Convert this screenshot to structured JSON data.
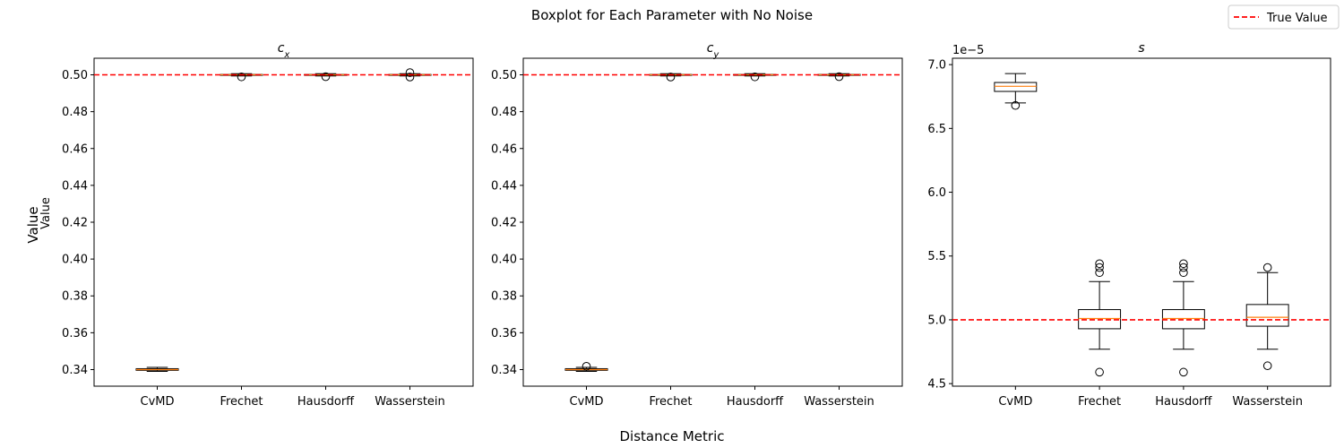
{
  "suptitle": "Boxplot for Each Parameter with No Noise",
  "supxlabel": "Distance Metric",
  "supylabel": "Value",
  "legend": {
    "label": "True Value",
    "placement": "top-right",
    "color": "#ff0000",
    "linestyle": "dashed"
  },
  "colors": {
    "median": "#ff7f0e",
    "box": "#000000",
    "true_line": "#ff0000"
  },
  "chart_data": [
    {
      "type": "box",
      "title": "c_x",
      "ylabel": "Value",
      "categories": [
        "CvMD",
        "Frechet",
        "Hausdorff",
        "Wasserstein"
      ],
      "ylim": [
        0.331,
        0.509
      ],
      "yticks": [
        0.34,
        0.36,
        0.38,
        0.4,
        0.42,
        0.44,
        0.46,
        0.48,
        0.5
      ],
      "ytick_labels": [
        "0.34",
        "0.36",
        "0.38",
        "0.40",
        "0.42",
        "0.44",
        "0.46",
        "0.48",
        "0.50"
      ],
      "true_value": 0.5,
      "boxes": [
        {
          "whislo": 0.339,
          "q1": 0.3396,
          "med": 0.34,
          "q3": 0.3405,
          "whishi": 0.3412,
          "fliers": []
        },
        {
          "whislo": 0.4994,
          "q1": 0.4998,
          "med": 0.5,
          "q3": 0.5002,
          "whishi": 0.5006,
          "fliers": [
            0.4989
          ]
        },
        {
          "whislo": 0.4994,
          "q1": 0.4998,
          "med": 0.5,
          "q3": 0.5002,
          "whishi": 0.5006,
          "fliers": [
            0.499
          ]
        },
        {
          "whislo": 0.4994,
          "q1": 0.4998,
          "med": 0.5,
          "q3": 0.5002,
          "whishi": 0.5006,
          "fliers": [
            0.5012,
            0.4988
          ]
        }
      ]
    },
    {
      "type": "box",
      "title": "c_y",
      "categories": [
        "CvMD",
        "Frechet",
        "Hausdorff",
        "Wasserstein"
      ],
      "ylim": [
        0.331,
        0.509
      ],
      "yticks": [
        0.34,
        0.36,
        0.38,
        0.4,
        0.42,
        0.44,
        0.46,
        0.48,
        0.5
      ],
      "ytick_labels": [
        "0.34",
        "0.36",
        "0.38",
        "0.40",
        "0.42",
        "0.44",
        "0.46",
        "0.48",
        "0.50"
      ],
      "true_value": 0.5,
      "boxes": [
        {
          "whislo": 0.339,
          "q1": 0.3396,
          "med": 0.34,
          "q3": 0.3405,
          "whishi": 0.3412,
          "fliers": [
            0.3418
          ]
        },
        {
          "whislo": 0.4994,
          "q1": 0.4998,
          "med": 0.5,
          "q3": 0.5002,
          "whishi": 0.5006,
          "fliers": [
            0.4988
          ]
        },
        {
          "whislo": 0.4994,
          "q1": 0.4998,
          "med": 0.5,
          "q3": 0.5002,
          "whishi": 0.5006,
          "fliers": [
            0.4989
          ]
        },
        {
          "whislo": 0.4994,
          "q1": 0.4998,
          "med": 0.5,
          "q3": 0.5002,
          "whishi": 0.5006,
          "fliers": [
            0.499
          ]
        }
      ]
    },
    {
      "type": "box",
      "title": "s",
      "categories": [
        "CvMD",
        "Frechet",
        "Hausdorff",
        "Wasserstein"
      ],
      "ylim": [
        4.48,
        7.05
      ],
      "yticks": [
        4.5,
        5.0,
        5.5,
        6.0,
        6.5,
        7.0
      ],
      "ytick_labels": [
        "4.5",
        "5.0",
        "5.5",
        "6.0",
        "6.5",
        "7.0"
      ],
      "offset_text": "1e−5",
      "true_value": 5.0,
      "boxes": [
        {
          "whislo": 6.7,
          "q1": 6.79,
          "med": 6.83,
          "q3": 6.86,
          "whishi": 6.93,
          "fliers": [
            6.68
          ]
        },
        {
          "whislo": 4.77,
          "q1": 4.93,
          "med": 5.01,
          "q3": 5.08,
          "whishi": 5.3,
          "fliers": [
            5.37,
            5.41,
            5.44,
            4.59
          ]
        },
        {
          "whislo": 4.77,
          "q1": 4.93,
          "med": 5.01,
          "q3": 5.08,
          "whishi": 5.3,
          "fliers": [
            5.37,
            5.41,
            5.44,
            4.59
          ]
        },
        {
          "whislo": 4.77,
          "q1": 4.95,
          "med": 5.02,
          "q3": 5.12,
          "whishi": 5.37,
          "fliers": [
            5.41,
            4.64
          ]
        }
      ]
    }
  ]
}
